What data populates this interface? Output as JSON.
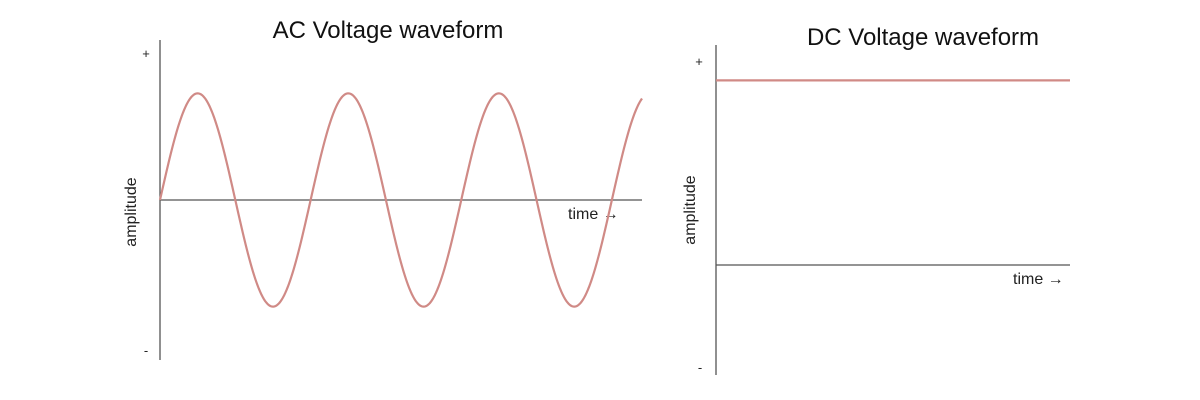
{
  "chart_data": [
    {
      "type": "line",
      "title": "AC Voltage waveform",
      "xlabel": "time →",
      "ylabel": "amplitude",
      "y_max_label": "+",
      "y_min_label": "-",
      "ylim": [
        -1.5,
        1.5
      ],
      "xlim": [
        0,
        3.2
      ],
      "grid": false,
      "series": [
        {
          "shape": "sine",
          "amplitude": 1,
          "cycles": 3.2,
          "color": "#d08a86"
        }
      ]
    },
    {
      "type": "line",
      "title": "DC Voltage waveform",
      "xlabel": "time →",
      "ylabel": "amplitude",
      "y_max_label": "+",
      "y_min_label": "-",
      "ylim": [
        -1,
        1.8
      ],
      "xlim": [
        0,
        1
      ],
      "grid": false,
      "series": [
        {
          "shape": "constant",
          "value": 1.5,
          "color": "#d08a86"
        }
      ]
    }
  ],
  "colors": {
    "axis": "#555555",
    "wave": "#d08a86"
  }
}
